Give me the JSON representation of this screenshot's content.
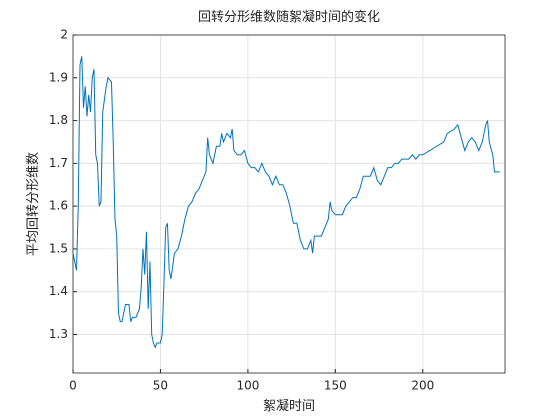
{
  "chart_data": {
    "type": "line",
    "title": "回转分形维数随絮凝时间的变化",
    "xlabel": "絮凝时间",
    "ylabel": "平均回转分形维数",
    "x": [
      0,
      2,
      3,
      4,
      5,
      6,
      7,
      8,
      9,
      10,
      11,
      12,
      13,
      14,
      15,
      16,
      17,
      18,
      19,
      20,
      22,
      23,
      24,
      25,
      26,
      27,
      28,
      29,
      30,
      32,
      33,
      34,
      36,
      38,
      39,
      40,
      41,
      42,
      43,
      44,
      45,
      46,
      47,
      48,
      50,
      51,
      52,
      53,
      54,
      55,
      56,
      58,
      60,
      62,
      64,
      66,
      68,
      70,
      72,
      74,
      76,
      77,
      78,
      80,
      82,
      84,
      85,
      86,
      88,
      90,
      91,
      92,
      94,
      96,
      98,
      100,
      102,
      104,
      106,
      108,
      110,
      112,
      114,
      116,
      118,
      120,
      122,
      124,
      126,
      128,
      130,
      132,
      134,
      136,
      137,
      138,
      140,
      142,
      144,
      146,
      147,
      148,
      150,
      152,
      154,
      156,
      158,
      160,
      162,
      164,
      166,
      168,
      170,
      172,
      174,
      176,
      178,
      180,
      182,
      184,
      186,
      188,
      190,
      192,
      194,
      196,
      198,
      200,
      204,
      208,
      212,
      214,
      218,
      220,
      222,
      224,
      226,
      228,
      230,
      232,
      234,
      236,
      237,
      238,
      240,
      241,
      244
    ],
    "series": [
      {
        "name": "回转分形维数",
        "color": "#0072bd",
        "values": [
          1.49,
          1.45,
          1.6,
          1.93,
          1.95,
          1.83,
          1.88,
          1.81,
          1.86,
          1.82,
          1.9,
          1.92,
          1.72,
          1.7,
          1.6,
          1.61,
          1.82,
          1.85,
          1.88,
          1.9,
          1.89,
          1.75,
          1.57,
          1.53,
          1.35,
          1.33,
          1.33,
          1.35,
          1.37,
          1.37,
          1.33,
          1.34,
          1.34,
          1.36,
          1.41,
          1.5,
          1.44,
          1.54,
          1.36,
          1.47,
          1.3,
          1.28,
          1.27,
          1.28,
          1.28,
          1.3,
          1.42,
          1.55,
          1.56,
          1.45,
          1.43,
          1.49,
          1.5,
          1.53,
          1.57,
          1.6,
          1.61,
          1.63,
          1.64,
          1.66,
          1.68,
          1.76,
          1.72,
          1.7,
          1.74,
          1.74,
          1.77,
          1.75,
          1.77,
          1.76,
          1.78,
          1.73,
          1.72,
          1.72,
          1.73,
          1.7,
          1.69,
          1.69,
          1.68,
          1.7,
          1.68,
          1.67,
          1.65,
          1.67,
          1.65,
          1.65,
          1.63,
          1.6,
          1.56,
          1.56,
          1.52,
          1.5,
          1.5,
          1.52,
          1.49,
          1.53,
          1.53,
          1.53,
          1.55,
          1.57,
          1.61,
          1.59,
          1.58,
          1.58,
          1.58,
          1.6,
          1.61,
          1.62,
          1.62,
          1.64,
          1.67,
          1.67,
          1.67,
          1.69,
          1.66,
          1.65,
          1.67,
          1.69,
          1.69,
          1.7,
          1.7,
          1.71,
          1.71,
          1.71,
          1.72,
          1.71,
          1.72,
          1.72,
          1.73,
          1.74,
          1.75,
          1.77,
          1.78,
          1.79,
          1.76,
          1.73,
          1.75,
          1.76,
          1.75,
          1.73,
          1.75,
          1.79,
          1.8,
          1.75,
          1.72,
          1.68,
          1.68
        ]
      }
    ],
    "xlim": [
      0,
      247
    ],
    "xticks": [
      0,
      50,
      100,
      150,
      200
    ],
    "ylim": [
      1.21,
      2
    ],
    "yticks": [
      1.3,
      1.4,
      1.5,
      1.6,
      1.7,
      1.8,
      1.9,
      2
    ],
    "grid": true
  }
}
